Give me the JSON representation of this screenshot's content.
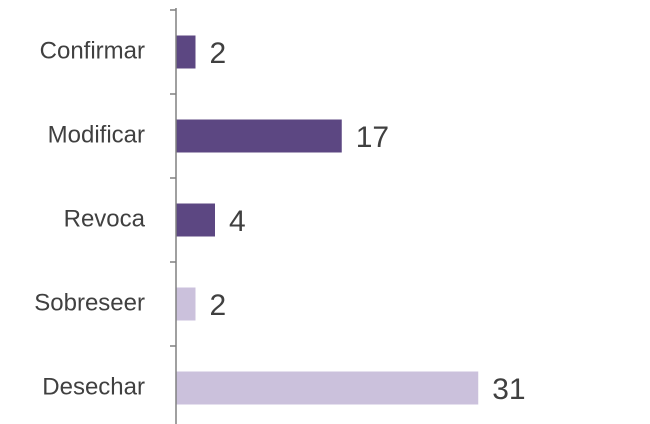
{
  "chart_data": {
    "type": "bar",
    "orientation": "horizontal",
    "categories": [
      "Confirmar",
      "Modificar",
      "Revoca",
      "Sobreseer",
      "Desechar"
    ],
    "values": [
      2,
      17,
      4,
      2,
      31
    ],
    "bar_colors": [
      "#5c4782",
      "#5c4782",
      "#5c4782",
      "#cbc1dc",
      "#cbc1dc"
    ],
    "data_labels": [
      "2",
      "17",
      "4",
      "2",
      "31"
    ],
    "title": "",
    "xlabel": "",
    "ylabel": "",
    "xlim": [
      0,
      50
    ],
    "grid": false,
    "legend": "none",
    "axis_color": "#808080",
    "text_color": "#404040"
  }
}
